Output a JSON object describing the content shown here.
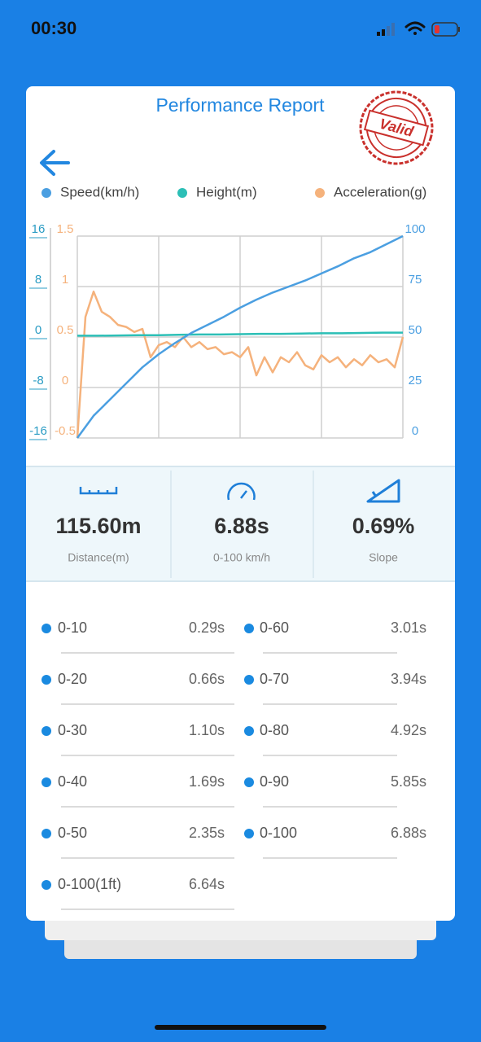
{
  "status_bar": {
    "time": "00:30"
  },
  "header": {
    "title": "Performance Report",
    "stamp": "Valid"
  },
  "chart_data": {
    "type": "line",
    "grid": true,
    "ylim": [
      -0.5,
      1.5
    ],
    "yticks": [
      -0.5,
      0,
      0.5,
      1,
      1.5
    ],
    "y2lim": [
      0,
      100
    ],
    "y2ticks": [
      0,
      25,
      50,
      75,
      100
    ],
    "y3lim": [
      -16,
      16
    ],
    "y3ticks": [
      -16,
      -8,
      0,
      8,
      16
    ],
    "series": [
      {
        "name": "Speed(km/h)",
        "color": "#4b9fe1",
        "axis": "y2",
        "values": [
          0,
          11,
          19,
          27,
          35,
          41.5,
          47,
          52,
          56,
          60,
          64.5,
          68.5,
          72,
          75,
          78,
          81.5,
          85,
          89,
          92,
          96,
          100
        ]
      },
      {
        "name": "Height(m)",
        "color": "#2cbfb6",
        "axis": "y3",
        "values": [
          0.2,
          0.2,
          0.25,
          0.3,
          0.3,
          0.35,
          0.4,
          0.4,
          0.45,
          0.5,
          0.5,
          0.55,
          0.6,
          0.6,
          0.65,
          0.7,
          0.7
        ]
      },
      {
        "name": "Acceleration(g)",
        "color": "#f5b27c",
        "axis": "y",
        "values": [
          -0.5,
          0.7,
          0.95,
          0.75,
          0.7,
          0.62,
          0.6,
          0.55,
          0.58,
          0.3,
          0.42,
          0.45,
          0.4,
          0.5,
          0.4,
          0.45,
          0.38,
          0.4,
          0.33,
          0.35,
          0.3,
          0.4,
          0.12,
          0.3,
          0.15,
          0.3,
          0.25,
          0.35,
          0.22,
          0.18,
          0.32,
          0.25,
          0.3,
          0.2,
          0.28,
          0.22,
          0.32,
          0.25,
          0.28,
          0.2,
          0.5
        ]
      }
    ]
  },
  "stats": [
    {
      "value": "115.60m",
      "label": "Distance(m)"
    },
    {
      "value": "6.88s",
      "label": "0-100 km/h"
    },
    {
      "value": "0.69%",
      "label": "Slope"
    }
  ],
  "splits": [
    [
      {
        "label": "0-10",
        "time": "0.29s"
      },
      {
        "label": "0-60",
        "time": "3.01s"
      }
    ],
    [
      {
        "label": "0-20",
        "time": "0.66s"
      },
      {
        "label": "0-70",
        "time": "3.94s"
      }
    ],
    [
      {
        "label": "0-30",
        "time": "1.10s"
      },
      {
        "label": "0-80",
        "time": "4.92s"
      }
    ],
    [
      {
        "label": "0-40",
        "time": "1.69s"
      },
      {
        "label": "0-90",
        "time": "5.85s"
      }
    ],
    [
      {
        "label": "0-50",
        "time": "2.35s"
      },
      {
        "label": "0-100",
        "time": "6.88s"
      }
    ],
    [
      {
        "label": "0-100(1ft)",
        "time": "6.64s"
      }
    ]
  ]
}
